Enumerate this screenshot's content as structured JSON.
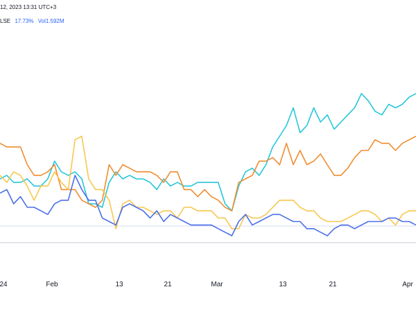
{
  "header": {
    "time": "12, 2023 13:31 UTC+3",
    "symbol_suffix": "LSE",
    "change": "17.73%",
    "volume": "Vol1.592M",
    "colors": {
      "symbol": "#131722",
      "change": "#2962ff",
      "volume": "#2962ff"
    }
  },
  "chart_data": {
    "type": "line",
    "grid": false,
    "legend": "none",
    "x_ticks": [
      "24",
      "Feb",
      "13",
      "21",
      "Mar",
      "13",
      "21",
      "Apr"
    ],
    "x": [
      0,
      1,
      2,
      3,
      4,
      5,
      6,
      7,
      8,
      9,
      10,
      11,
      12,
      13,
      14,
      15,
      16,
      17,
      18,
      19,
      20,
      21,
      22,
      23,
      24,
      25,
      26,
      27,
      28,
      29,
      30,
      31,
      32,
      33,
      34,
      35,
      36,
      37,
      38,
      39,
      40,
      41,
      42,
      43,
      44,
      45,
      46,
      47,
      48,
      49,
      50,
      51,
      52,
      53,
      54,
      55,
      56,
      57,
      58,
      59,
      60,
      61
    ],
    "series": [
      {
        "color": "#26c6da",
        "values": [
          3.2,
          3.3,
          3.1,
          3.1,
          3.2,
          3.0,
          3.0,
          3.2,
          3.7,
          3.4,
          3.3,
          3.4,
          3.2,
          2.5,
          2.5,
          2.4,
          3.1,
          3.4,
          3.2,
          3.3,
          3.2,
          3.2,
          3.1,
          2.9,
          3.2,
          3.0,
          3.1,
          3.0,
          3.0,
          3.1,
          3.1,
          3.1,
          3.1,
          2.5,
          2.3,
          3.0,
          3.4,
          3.5,
          3.3,
          3.6,
          4.1,
          4.4,
          4.7,
          5.2,
          4.5,
          4.7,
          5.2,
          4.8,
          5.0,
          4.6,
          4.8,
          5.0,
          5.2,
          5.6,
          5.4,
          5.1,
          5.0,
          5.3,
          5.2,
          5.3,
          5.5,
          5.6
        ]
      },
      {
        "color": "#ef8c2f",
        "values": [
          4.2,
          4.1,
          4.1,
          4.1,
          3.6,
          3.3,
          3.3,
          3.4,
          3.6,
          2.9,
          2.9,
          2.9,
          2.6,
          2.5,
          2.4,
          2.6,
          3.6,
          3.3,
          3.6,
          3.5,
          3.4,
          3.4,
          3.4,
          3.3,
          3.1,
          3.4,
          3.4,
          2.9,
          2.9,
          2.7,
          2.9,
          2.7,
          2.6,
          2.4,
          2.3,
          3.1,
          3.2,
          3.3,
          3.7,
          3.7,
          3.8,
          3.6,
          4.2,
          3.6,
          4.0,
          3.6,
          3.7,
          3.9,
          3.6,
          3.3,
          3.3,
          3.5,
          3.8,
          4.0,
          4.0,
          4.3,
          4.2,
          4.2,
          4.0,
          4.2,
          4.3,
          4.4
        ]
      },
      {
        "color": "#f7c74f",
        "values": [
          3.3,
          3.1,
          3.4,
          3.3,
          3.0,
          2.6,
          3.0,
          3.0,
          3.4,
          3.1,
          2.9,
          4.3,
          4.4,
          3.2,
          2.9,
          2.9,
          2.6,
          1.8,
          2.5,
          2.6,
          2.4,
          2.4,
          2.3,
          2.2,
          2.3,
          2.3,
          2.1,
          2.4,
          2.4,
          2.3,
          2.3,
          2.3,
          2.1,
          2.1,
          1.8,
          1.8,
          2.2,
          2.1,
          2.1,
          2.2,
          2.4,
          2.6,
          2.6,
          2.6,
          2.4,
          2.3,
          2.3,
          2.1,
          2.0,
          2.0,
          2.0,
          2.1,
          2.2,
          2.3,
          2.3,
          2.2,
          2.0,
          2.1,
          1.9,
          2.2,
          2.3,
          2.3
        ]
      },
      {
        "color": "#4a6ee8",
        "values": [
          2.8,
          2.9,
          2.5,
          2.7,
          2.4,
          2.4,
          2.3,
          2.2,
          2.5,
          2.6,
          2.6,
          3.3,
          2.9,
          2.6,
          2.6,
          2.1,
          2.0,
          1.9,
          2.4,
          2.5,
          2.4,
          2.3,
          2.1,
          2.3,
          2.0,
          2.2,
          2.1,
          2.0,
          1.9,
          1.9,
          1.9,
          1.9,
          1.8,
          1.7,
          1.6,
          2.0,
          2.2,
          1.9,
          2.0,
          2.1,
          2.2,
          2.2,
          2.1,
          2.0,
          2.0,
          1.8,
          1.8,
          1.7,
          1.6,
          1.8,
          1.9,
          1.9,
          1.8,
          1.9,
          2.0,
          2.0,
          2.0,
          2.1,
          2.1,
          2.0,
          2.0,
          1.9
        ]
      }
    ]
  }
}
